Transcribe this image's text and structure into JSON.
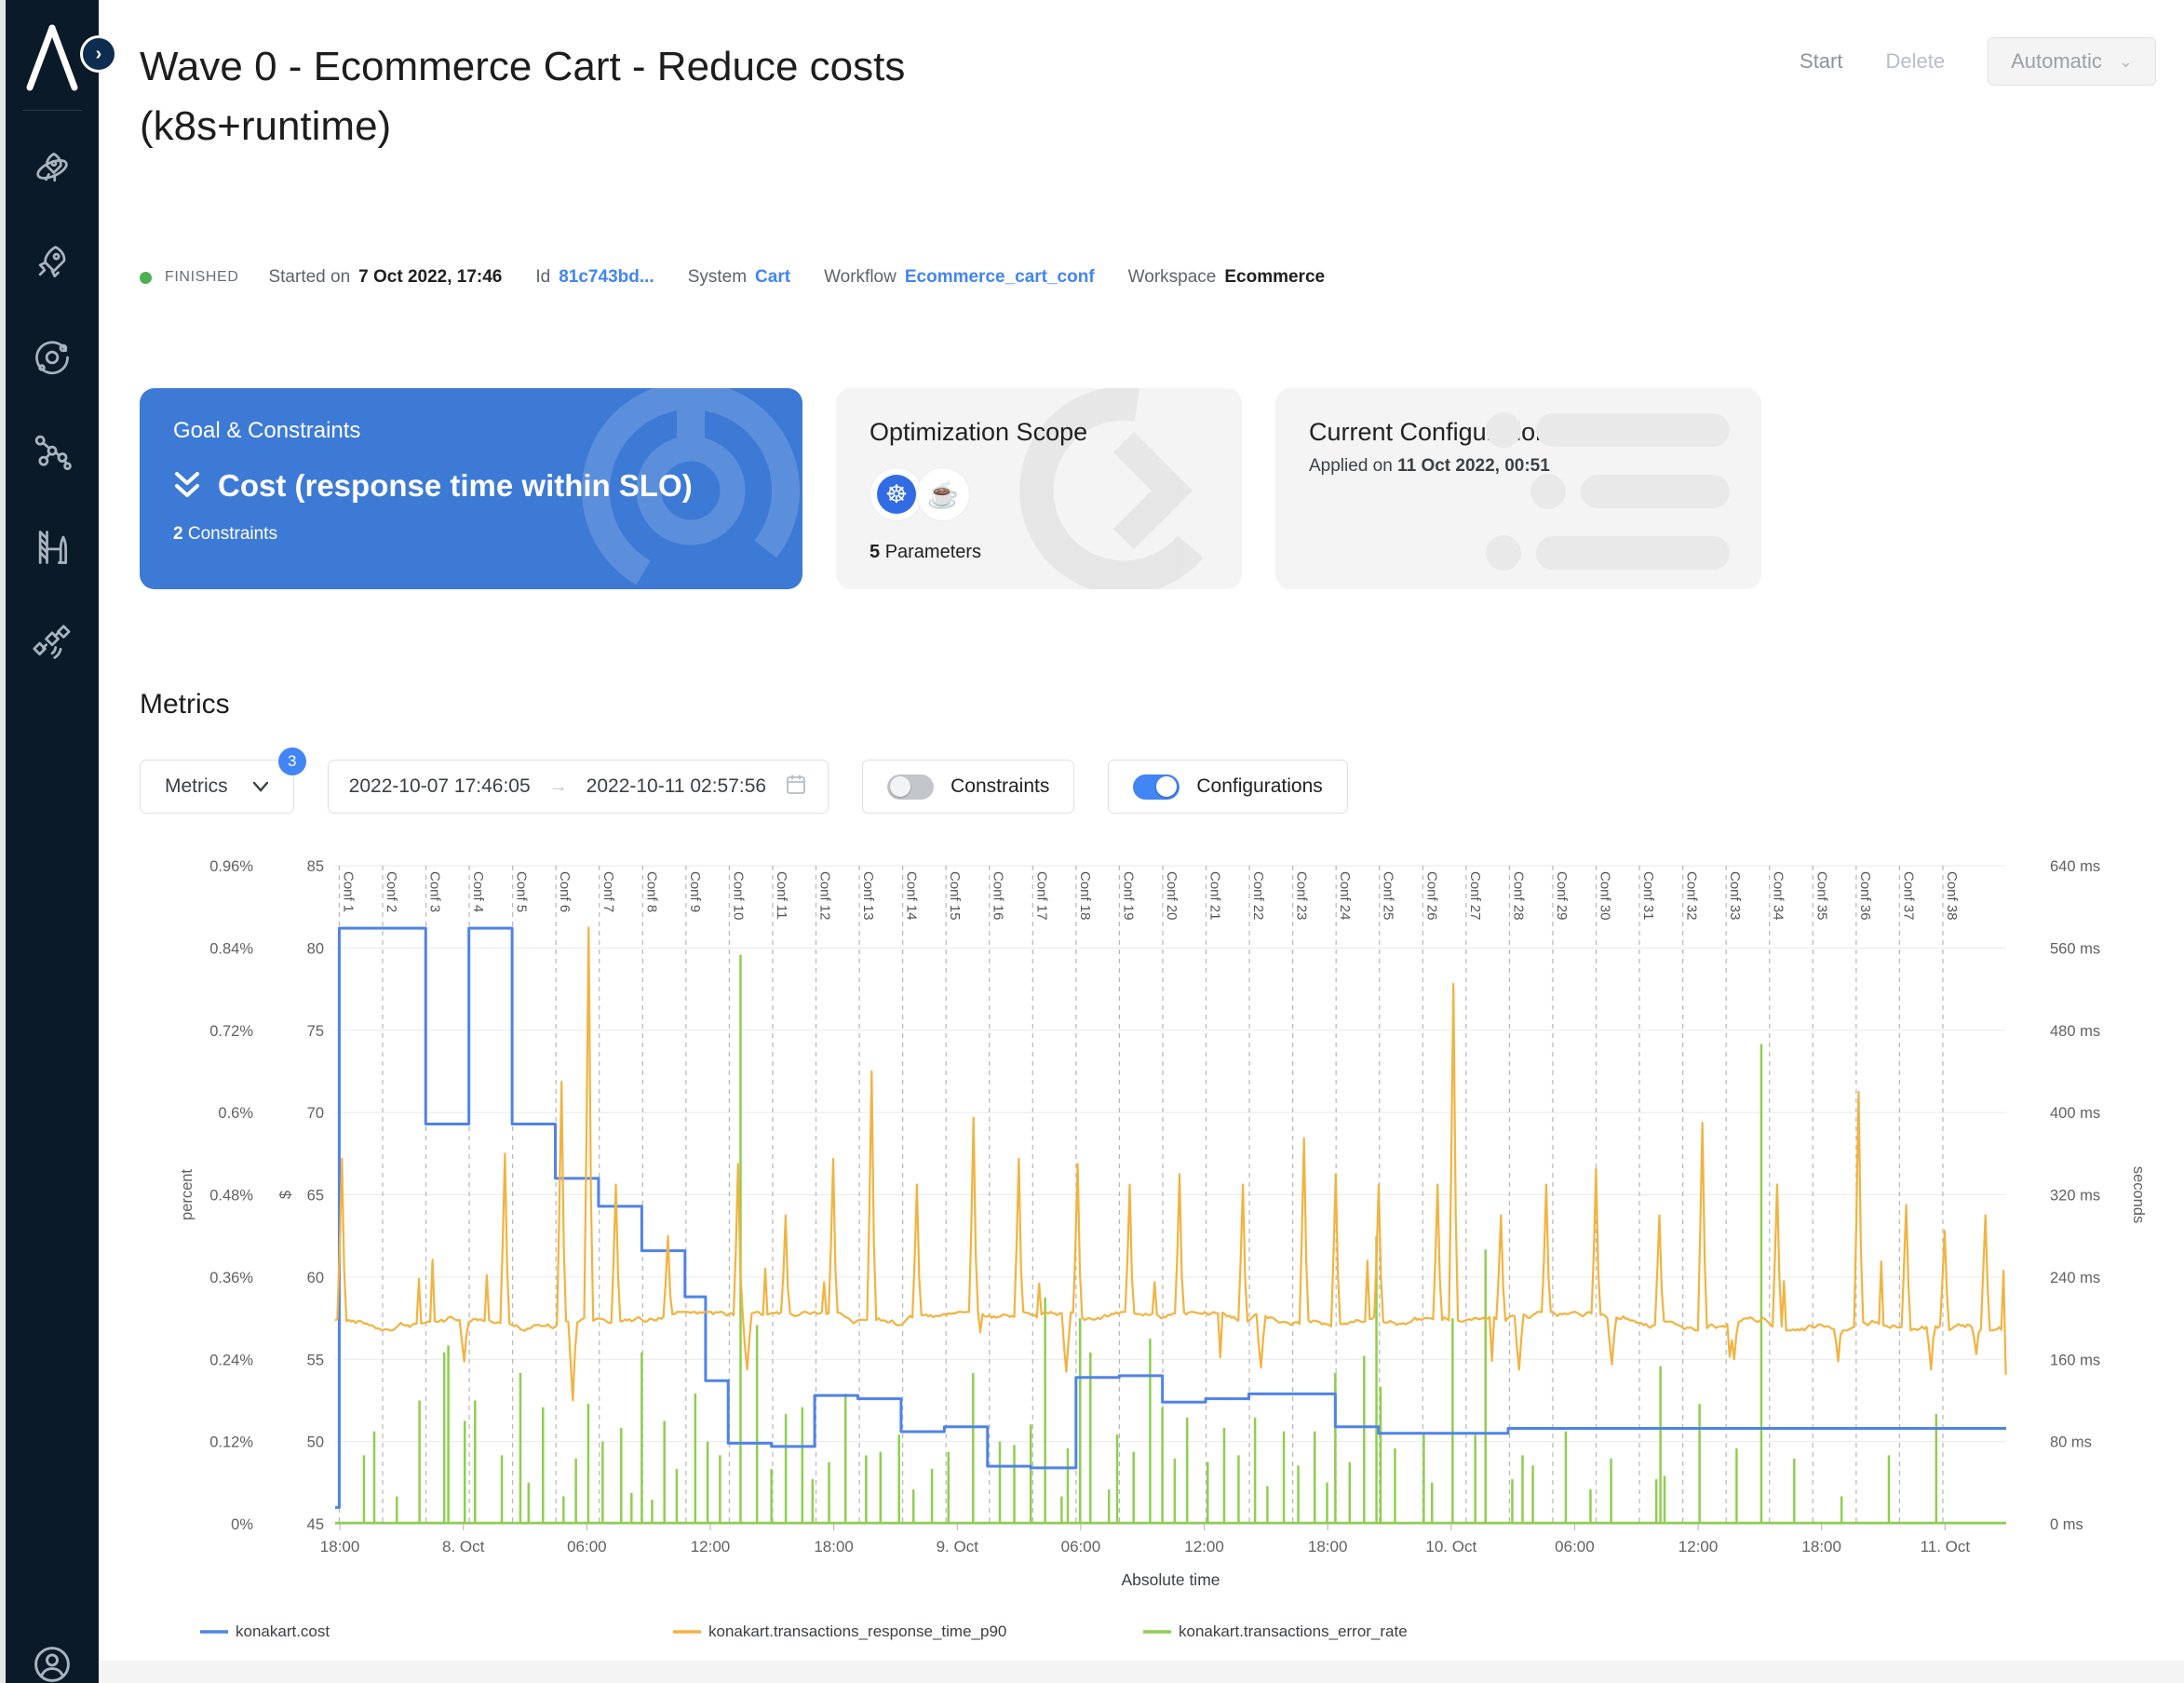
{
  "colors": {
    "sidebar_bg": "#0b1a29",
    "accent_blue": "#4285f4",
    "goal_card_bg": "#3d7ad5",
    "status_green": "#4caf50",
    "cost_line": "#4f83e8",
    "response_line": "#f2b340",
    "error_line": "#8fce4f",
    "k8s_blue": "#326ce5"
  },
  "header": {
    "title_line1": "Wave 0 - Ecommerce Cart - Reduce costs",
    "title_line2": "(k8s+runtime)",
    "actions": {
      "start": "Start",
      "delete": "Delete",
      "mode": "Automatic"
    }
  },
  "sidebar": {
    "icons": [
      "rocket-planet",
      "rocket",
      "orbit",
      "network-graph",
      "launchpad",
      "satellite"
    ],
    "user": "account"
  },
  "status": {
    "state": "FINISHED",
    "started_label": "Started on",
    "started_value": "7 Oct 2022, 17:46",
    "id_label": "Id",
    "id_value": "81c743bd...",
    "system_label": "System",
    "system_value": "Cart",
    "workflow_label": "Workflow",
    "workflow_value": "Ecommerce_cart_conf",
    "workspace_label": "Workspace",
    "workspace_value": "Ecommerce"
  },
  "cards": {
    "goal": {
      "title": "Goal & Constraints",
      "goal": "Cost (response time within SLO)",
      "constraints_count": "2",
      "constraints_label": "Constraints"
    },
    "scope": {
      "title": "Optimization Scope",
      "parameters_count": "5",
      "parameters_label": "Parameters",
      "technologies": [
        "kubernetes",
        "java"
      ]
    },
    "current": {
      "title": "Current Configuration",
      "applied_label": "Applied on",
      "applied_value": "11 Oct 2022, 00:51"
    }
  },
  "metrics": {
    "heading": "Metrics",
    "selector_label": "Metrics",
    "selector_badge": "3",
    "date_from": "2022-10-07 17:46:05",
    "date_to": "2022-10-11 02:57:56",
    "toggles": [
      {
        "label": "Constraints",
        "on": false
      },
      {
        "label": "Configurations",
        "on": true
      }
    ]
  },
  "chart_data": {
    "type": "line",
    "title": "",
    "x_axis": {
      "label": "Absolute time",
      "start": "2022-10-07 17:46:05",
      "end": "2022-10-11 02:57:56",
      "duration_hours": 81.2,
      "ticks": [
        [
          0.23,
          "18:00"
        ],
        [
          6.23,
          "8. Oct"
        ],
        [
          12.23,
          "06:00"
        ],
        [
          18.23,
          "12:00"
        ],
        [
          24.23,
          "18:00"
        ],
        [
          30.23,
          "9. Oct"
        ],
        [
          36.23,
          "06:00"
        ],
        [
          42.23,
          "12:00"
        ],
        [
          48.23,
          "18:00"
        ],
        [
          54.23,
          "10. Oct"
        ],
        [
          60.23,
          "06:00"
        ],
        [
          66.23,
          "12:00"
        ],
        [
          72.23,
          "18:00"
        ],
        [
          78.23,
          "11. Oct"
        ]
      ]
    },
    "y_axes": [
      {
        "id": "percent",
        "title": "percent",
        "min": 0,
        "max": 0.96,
        "tick_labels": [
          "0%",
          "0.12%",
          "0.24%",
          "0.36%",
          "0.48%",
          "0.6%",
          "0.72%",
          "0.84%",
          "0.96%"
        ]
      },
      {
        "id": "dollar",
        "title": "$",
        "min": 45,
        "max": 85,
        "tick_labels": [
          "45",
          "50",
          "55",
          "60",
          "65",
          "70",
          "75",
          "80",
          "85"
        ]
      },
      {
        "id": "seconds",
        "title": "seconds",
        "min": 0,
        "max": 640,
        "tick_labels": [
          "0 ms",
          "80 ms",
          "160 ms",
          "240 ms",
          "320 ms",
          "400 ms",
          "480 ms",
          "560 ms",
          "640 ms"
        ]
      }
    ],
    "grid": true,
    "legend_position": "bottom",
    "config_markers": {
      "prefix": "Conf",
      "count": 38,
      "first_t_hours": 0.2,
      "interval_hours": 2.106
    },
    "series": [
      {
        "name": "konakart.cost",
        "axis": "dollar",
        "color": "#4f83e8",
        "type": "step",
        "points": [
          [
            0,
            46.0
          ],
          [
            0.2,
            81.2
          ],
          [
            4.4,
            69.3
          ],
          [
            6.5,
            81.2
          ],
          [
            8.6,
            69.3
          ],
          [
            10.7,
            66.0
          ],
          [
            12.8,
            64.3
          ],
          [
            14.9,
            61.6
          ],
          [
            17.0,
            58.8
          ],
          [
            18.0,
            53.7
          ],
          [
            19.1,
            49.9
          ],
          [
            21.2,
            49.7
          ],
          [
            23.3,
            52.8
          ],
          [
            25.4,
            52.6
          ],
          [
            27.5,
            50.6
          ],
          [
            29.6,
            50.9
          ],
          [
            31.7,
            48.5
          ],
          [
            33.8,
            48.4
          ],
          [
            36.0,
            53.9
          ],
          [
            38.1,
            54.0
          ],
          [
            40.2,
            52.4
          ],
          [
            42.3,
            52.6
          ],
          [
            44.4,
            52.9
          ],
          [
            46.5,
            52.9
          ],
          [
            48.6,
            50.9
          ],
          [
            50.7,
            50.5
          ],
          [
            54.9,
            50.5
          ],
          [
            57.0,
            50.8
          ],
          [
            81.2,
            50.8
          ]
        ]
      },
      {
        "name": "konakart.transactions_response_time_p90",
        "axis": "seconds",
        "color": "#f2b340",
        "type": "noisy-line",
        "baseline_ms": 197,
        "noise_ms": 7,
        "spikes": [
          [
            0.3,
            355
          ],
          [
            8.2,
            360
          ],
          [
            11.0,
            430
          ],
          [
            12.3,
            580
          ],
          [
            13.6,
            330
          ],
          [
            16.2,
            280
          ],
          [
            19.6,
            350
          ],
          [
            21.9,
            300
          ],
          [
            24.2,
            355
          ],
          [
            26.1,
            440
          ],
          [
            28.3,
            330
          ],
          [
            31.0,
            395
          ],
          [
            33.2,
            355
          ],
          [
            36.1,
            350
          ],
          [
            38.6,
            330
          ],
          [
            41.0,
            340
          ],
          [
            44.1,
            330
          ],
          [
            47.1,
            375
          ],
          [
            48.6,
            340
          ],
          [
            50.7,
            330
          ],
          [
            53.6,
            330
          ],
          [
            54.3,
            525
          ],
          [
            56.6,
            300
          ],
          [
            58.9,
            330
          ],
          [
            61.3,
            345
          ],
          [
            64.4,
            300
          ],
          [
            66.4,
            390
          ],
          [
            70.1,
            330
          ],
          [
            74.0,
            420
          ],
          [
            76.3,
            310
          ],
          [
            78.2,
            285
          ],
          [
            80.2,
            300
          ]
        ],
        "dips": [
          [
            6.3,
            158
          ],
          [
            11.5,
            120
          ],
          [
            20.0,
            150
          ],
          [
            35.5,
            148
          ],
          [
            45.0,
            152
          ],
          [
            57.5,
            150
          ],
          [
            62.0,
            155
          ],
          [
            68.0,
            160
          ],
          [
            73.0,
            158
          ],
          [
            77.5,
            150
          ],
          [
            79.8,
            165
          ]
        ]
      },
      {
        "name": "konakart.transactions_error_rate",
        "axis": "percent",
        "color": "#8fce4f",
        "type": "spikes",
        "baseline": 0,
        "spikes": [
          [
            1.4,
            0.1
          ],
          [
            1.9,
            0.135
          ],
          [
            3.0,
            0.04
          ],
          [
            4.1,
            0.18
          ],
          [
            5.3,
            0.25
          ],
          [
            5.5,
            0.26
          ],
          [
            6.3,
            0.15
          ],
          [
            6.8,
            0.18
          ],
          [
            8.1,
            0.1
          ],
          [
            9.0,
            0.22
          ],
          [
            9.4,
            0.06
          ],
          [
            10.1,
            0.17
          ],
          [
            11.1,
            0.04
          ],
          [
            11.7,
            0.095
          ],
          [
            12.3,
            0.175
          ],
          [
            13.0,
            0.12
          ],
          [
            13.9,
            0.14
          ],
          [
            14.4,
            0.045
          ],
          [
            14.9,
            0.25
          ],
          [
            15.4,
            0.035
          ],
          [
            16.0,
            0.15
          ],
          [
            16.6,
            0.08
          ],
          [
            17.5,
            0.19
          ],
          [
            18.1,
            0.12
          ],
          [
            18.7,
            0.1
          ],
          [
            19.7,
            0.83
          ],
          [
            20.5,
            0.29
          ],
          [
            21.2,
            0.08
          ],
          [
            21.9,
            0.16
          ],
          [
            22.7,
            0.17
          ],
          [
            23.2,
            0.065
          ],
          [
            24.0,
            0.09
          ],
          [
            24.8,
            0.19
          ],
          [
            25.8,
            0.1
          ],
          [
            26.5,
            0.105
          ],
          [
            27.4,
            0.13
          ],
          [
            28.1,
            0.05
          ],
          [
            29.0,
            0.08
          ],
          [
            29.8,
            0.105
          ],
          [
            31.0,
            0.22
          ],
          [
            32.3,
            0.12
          ],
          [
            33.0,
            0.115
          ],
          [
            33.8,
            0.145
          ],
          [
            34.5,
            0.33
          ],
          [
            35.3,
            0.04
          ],
          [
            35.6,
            0.11
          ],
          [
            36.2,
            0.3
          ],
          [
            36.7,
            0.25
          ],
          [
            37.6,
            0.05
          ],
          [
            38.0,
            0.13
          ],
          [
            38.8,
            0.105
          ],
          [
            39.6,
            0.27
          ],
          [
            40.2,
            0.17
          ],
          [
            40.8,
            0.095
          ],
          [
            41.4,
            0.155
          ],
          [
            42.4,
            0.09
          ],
          [
            43.2,
            0.14
          ],
          [
            43.9,
            0.1
          ],
          [
            44.7,
            0.155
          ],
          [
            45.3,
            0.055
          ],
          [
            46.1,
            0.135
          ],
          [
            46.8,
            0.085
          ],
          [
            47.6,
            0.135
          ],
          [
            48.2,
            0.06
          ],
          [
            48.6,
            0.22
          ],
          [
            49.3,
            0.09
          ],
          [
            50.0,
            0.245
          ],
          [
            50.6,
            0.42
          ],
          [
            50.8,
            0.2
          ],
          [
            51.5,
            0.11
          ],
          [
            52.9,
            0.13
          ],
          [
            53.3,
            0.06
          ],
          [
            54.3,
            0.3
          ],
          [
            55.4,
            0.13
          ],
          [
            55.9,
            0.4
          ],
          [
            57.2,
            0.065
          ],
          [
            57.7,
            0.1
          ],
          [
            58.2,
            0.085
          ],
          [
            59.8,
            0.135
          ],
          [
            61.0,
            0.05
          ],
          [
            62.0,
            0.095
          ],
          [
            64.2,
            0.065
          ],
          [
            64.4,
            0.23
          ],
          [
            64.6,
            0.07
          ],
          [
            66.3,
            0.175
          ],
          [
            68.1,
            0.11
          ],
          [
            69.3,
            0.7
          ],
          [
            70.9,
            0.095
          ],
          [
            73.2,
            0.04
          ],
          [
            75.5,
            0.1
          ],
          [
            77.8,
            0.16
          ]
        ]
      }
    ]
  }
}
